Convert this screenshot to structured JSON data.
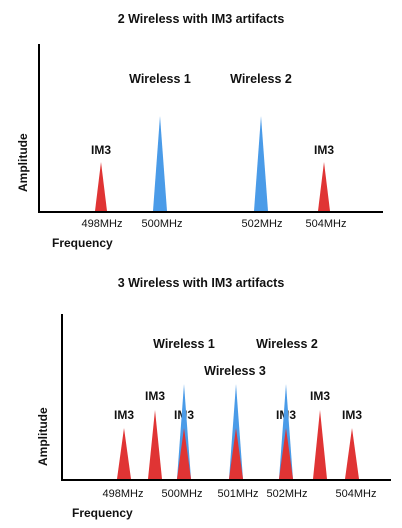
{
  "diagram1": {
    "title": "2 Wireless with IM3 artifacts",
    "ylabel": "Amplitude",
    "xlabel": "Frequency",
    "ticks": [
      "498MHz",
      "500MHz",
      "502MHz",
      "504MHz"
    ],
    "signal_labels": [
      "Wireless 1",
      "Wireless 2"
    ],
    "im3_labels": [
      "IM3",
      "IM3"
    ]
  },
  "diagram2": {
    "title": "3 Wireless with IM3 artifacts",
    "ylabel": "Amplitude",
    "xlabel": "Frequency",
    "ticks": [
      "498MHz",
      "500MHz",
      "501MHz",
      "502MHz",
      "504MHz"
    ],
    "signal_labels": [
      "Wireless 1",
      "Wireless 2",
      "Wireless 3"
    ],
    "im3_labels": [
      "IM3",
      "IM3",
      "IM3",
      "IM3",
      "IM3",
      "IM3"
    ]
  },
  "colors": {
    "signal": "#4a9be8",
    "im3": "#e03434"
  }
}
